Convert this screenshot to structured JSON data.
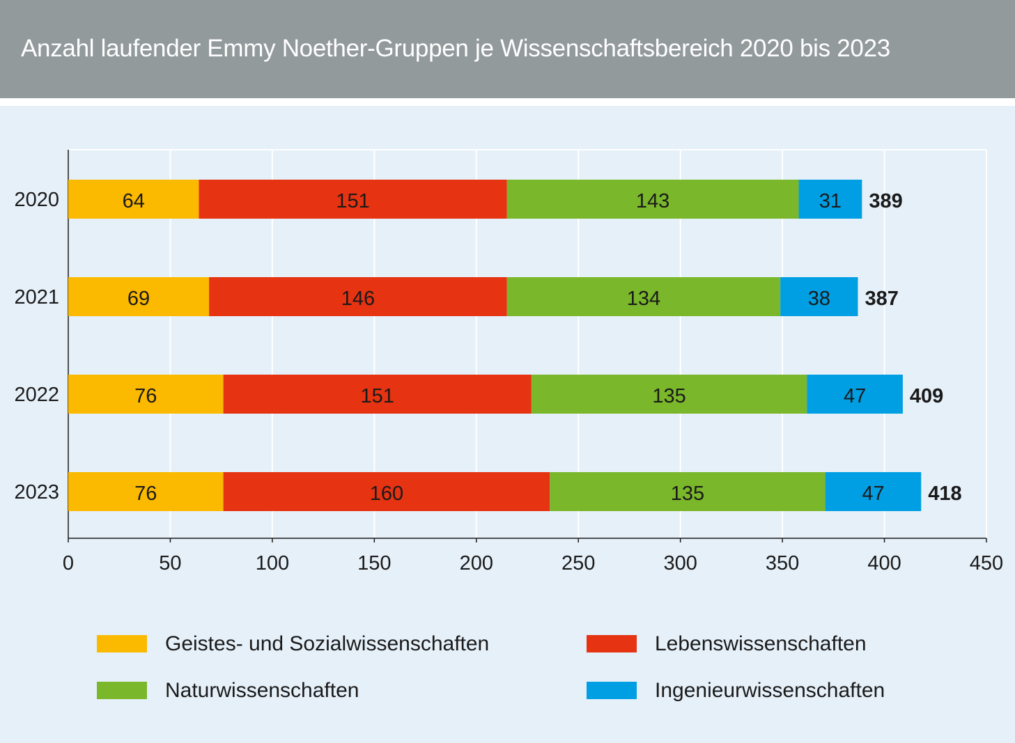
{
  "title": "Anzahl laufender Emmy Noether-Gruppen je Wissenschaftsbereich 2020 bis 2023",
  "chart_data": {
    "type": "bar",
    "orientation": "horizontal",
    "stacked": true,
    "categories": [
      "2020",
      "2021",
      "2022",
      "2023"
    ],
    "series": [
      {
        "name": "Geistes- und Sozialwissenschaften",
        "values": [
          64,
          69,
          76,
          76
        ],
        "color": "#fbb900"
      },
      {
        "name": "Lebenswissenschaften",
        "values": [
          151,
          146,
          151,
          160
        ],
        "color": "#e63312"
      },
      {
        "name": "Naturwissenschaften",
        "values": [
          143,
          134,
          135,
          135
        ],
        "color": "#7ab72b"
      },
      {
        "name": "Ingenieurwissenschaften",
        "values": [
          31,
          38,
          47,
          47
        ],
        "color": "#009fe3"
      }
    ],
    "totals": [
      389,
      387,
      409,
      418
    ],
    "xlim": [
      0,
      450
    ],
    "xticks": [
      0,
      50,
      100,
      150,
      200,
      250,
      300,
      350,
      400,
      450
    ],
    "grid": true,
    "legend": "bottom"
  }
}
